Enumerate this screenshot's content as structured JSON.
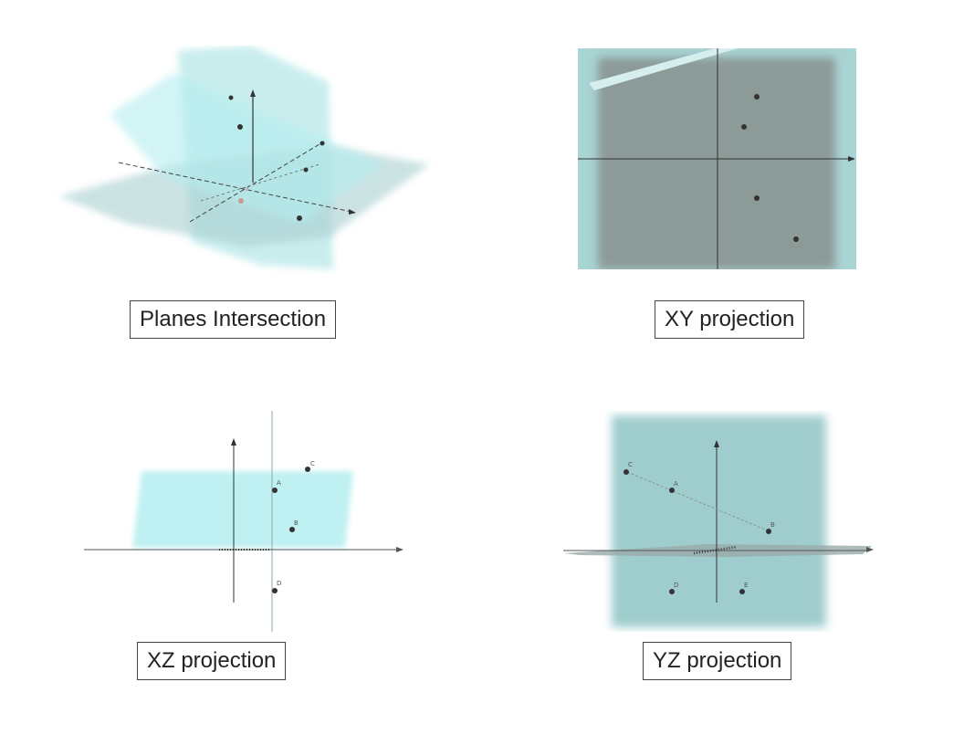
{
  "captions": {
    "planes": "Planes Intersection",
    "xy": "XY projection",
    "xz": "XZ projection",
    "yz": "YZ projection"
  },
  "points": {
    "xz": {
      "A": "A",
      "B": "B",
      "C": "C",
      "D": "D"
    },
    "yz": {
      "A": "A",
      "B": "B",
      "C": "C",
      "D": "D",
      "E": "E"
    }
  },
  "colors": {
    "plane_fill": "#9edfe0",
    "dark_plane": "#8c9c98",
    "axis": "#333333",
    "point": "#333333"
  },
  "icons": [
    "axis-arrow-icon",
    "point-marker-icon"
  ]
}
